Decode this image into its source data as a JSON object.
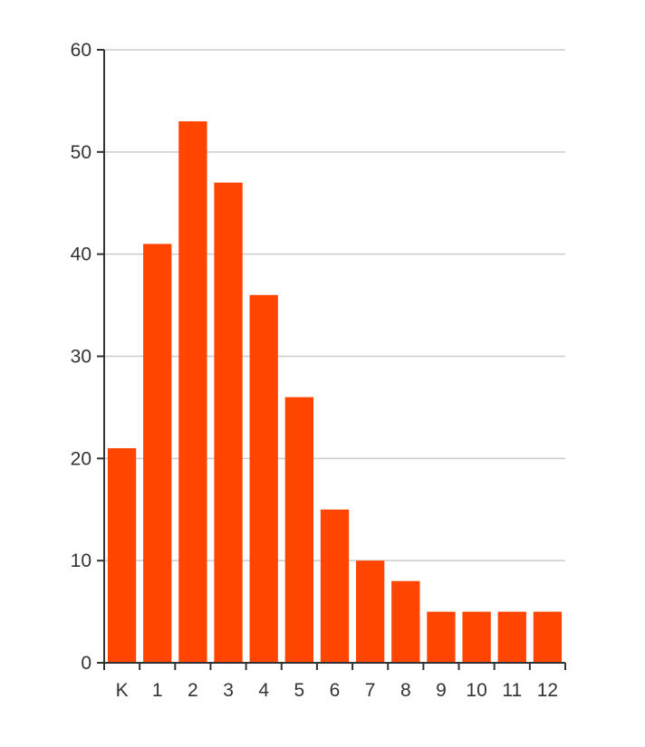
{
  "chart_data": {
    "type": "bar",
    "title": "",
    "xlabel": "",
    "ylabel": "",
    "categories": [
      "K",
      "1",
      "2",
      "3",
      "4",
      "5",
      "6",
      "7",
      "8",
      "9",
      "10",
      "11",
      "12"
    ],
    "values": [
      21,
      41,
      53,
      47,
      36,
      26,
      15,
      10,
      8,
      5,
      5,
      5,
      5
    ],
    "ylim": [
      0,
      60
    ],
    "yticks": [
      0,
      10,
      20,
      30,
      40,
      50,
      60
    ],
    "grid": true,
    "bar_color": "#ff4500",
    "grid_color": "#cccccc",
    "axis_color": "#333333"
  }
}
